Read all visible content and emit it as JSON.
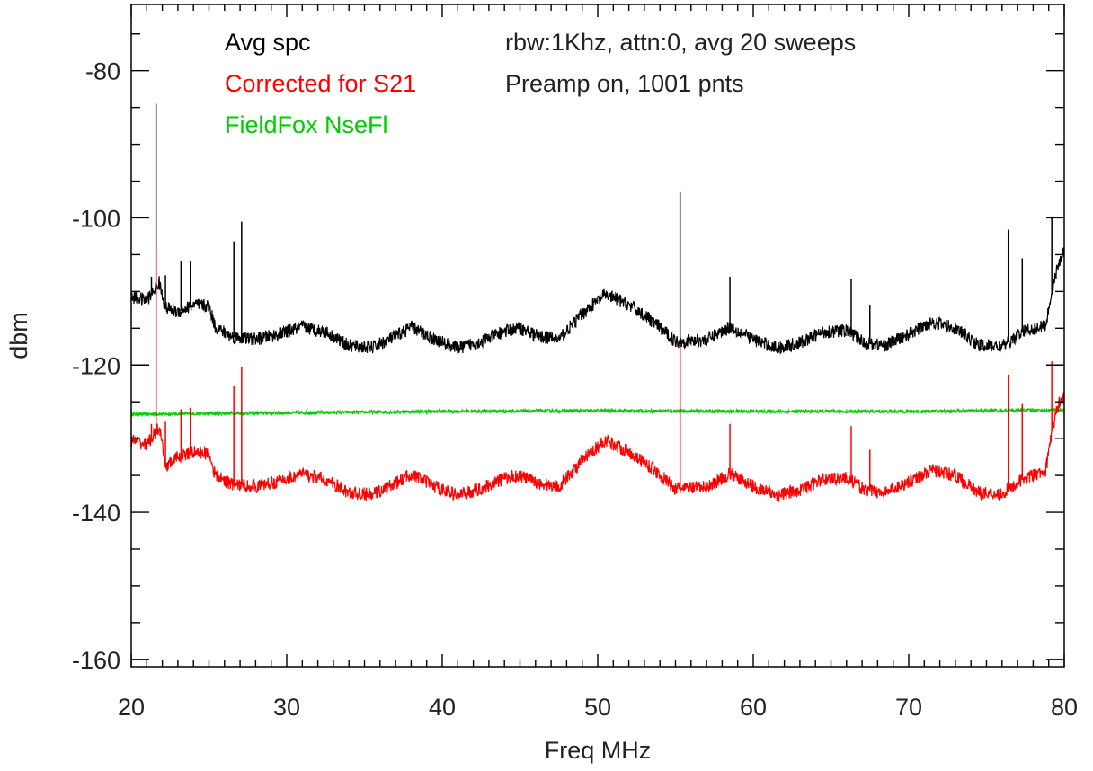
{
  "chart_data": {
    "type": "line",
    "xlabel": "Freq MHz",
    "ylabel": "dbm",
    "xlim": [
      20,
      80
    ],
    "ylim": [
      -161,
      -71
    ],
    "x_ticks": [
      20,
      30,
      40,
      50,
      60,
      70,
      80
    ],
    "y_ticks": [
      -160,
      -140,
      -120,
      -100,
      -80
    ],
    "x_minor_step": 1,
    "y_minor_step": 5,
    "grid": false,
    "legend_position": "top-left",
    "annotations": [
      {
        "id": "settings-line-1",
        "text": "rbw:1Khz, attn:0, avg 20 sweeps"
      },
      {
        "id": "settings-line-2",
        "text": "Preamp  on, 1001 pnts"
      }
    ],
    "series": [
      {
        "name": "Avg spc",
        "color": "#000000",
        "noise": 0.9,
        "points": [
          [
            20,
            -110.7
          ],
          [
            21,
            -111.2
          ],
          [
            21.8,
            -108.8
          ],
          [
            22.2,
            -112.2
          ],
          [
            23,
            -112.8
          ],
          [
            24,
            -111.8
          ],
          [
            25,
            -112
          ],
          [
            25.4,
            -114.8
          ],
          [
            26.5,
            -116.2
          ],
          [
            28,
            -116.5
          ],
          [
            29.5,
            -115.8
          ],
          [
            31,
            -114.8
          ],
          [
            32.5,
            -115.5
          ],
          [
            34,
            -117.4
          ],
          [
            35.5,
            -117.6
          ],
          [
            37,
            -116.1
          ],
          [
            38,
            -114.8
          ],
          [
            39.5,
            -116.5
          ],
          [
            41,
            -117.7
          ],
          [
            42.5,
            -116.8
          ],
          [
            44,
            -115.4
          ],
          [
            45,
            -115
          ],
          [
            46.2,
            -116.1
          ],
          [
            47.5,
            -116.5
          ],
          [
            49,
            -113
          ],
          [
            50.5,
            -110.4
          ],
          [
            52,
            -111.8
          ],
          [
            53.5,
            -114
          ],
          [
            55,
            -116.8
          ],
          [
            57,
            -116.6
          ],
          [
            58.5,
            -114.8
          ],
          [
            60,
            -116.5
          ],
          [
            61.5,
            -117.7
          ],
          [
            63,
            -117
          ],
          [
            64.5,
            -115.5
          ],
          [
            66,
            -115.3
          ],
          [
            67.2,
            -117
          ],
          [
            68.5,
            -117.3
          ],
          [
            70,
            -115.8
          ],
          [
            71.5,
            -114.1
          ],
          [
            73,
            -115
          ],
          [
            74.5,
            -117.3
          ],
          [
            76,
            -117.5
          ],
          [
            77.5,
            -115.3
          ],
          [
            78.8,
            -114.7
          ],
          [
            79.2,
            -110
          ],
          [
            79.7,
            -105.7
          ],
          [
            80,
            -104.7
          ]
        ],
        "spikes": [
          [
            21.3,
            -108
          ],
          [
            21.6,
            -84.5
          ],
          [
            22.2,
            -107.8
          ],
          [
            23.2,
            -105.8
          ],
          [
            23.8,
            -105.8
          ],
          [
            26.6,
            -103.2
          ],
          [
            27.1,
            -100.5
          ],
          [
            55.3,
            -96.5
          ],
          [
            58.5,
            -108
          ],
          [
            66.3,
            -108.3
          ],
          [
            67.5,
            -111.8
          ],
          [
            76.4,
            -101.6
          ],
          [
            77.3,
            -105.5
          ],
          [
            79.2,
            -99.8
          ]
        ]
      },
      {
        "name": "Corrected for S21",
        "color": "#ff0000",
        "noise": 0.9,
        "points": [
          [
            20,
            -130.2
          ],
          [
            21,
            -130.8
          ],
          [
            21.8,
            -128.5
          ],
          [
            22.2,
            -133.8
          ],
          [
            23,
            -132.5
          ],
          [
            24,
            -131.8
          ],
          [
            25,
            -132
          ],
          [
            25.4,
            -135
          ],
          [
            26.5,
            -136.2
          ],
          [
            28,
            -136.5
          ],
          [
            29.5,
            -135.8
          ],
          [
            31,
            -134.8
          ],
          [
            32.5,
            -135.6
          ],
          [
            34,
            -137.4
          ],
          [
            35.5,
            -137.6
          ],
          [
            37,
            -136.1
          ],
          [
            38,
            -134.8
          ],
          [
            39.5,
            -136.5
          ],
          [
            41,
            -137.7
          ],
          [
            42.5,
            -136.8
          ],
          [
            44,
            -135.4
          ],
          [
            45,
            -135
          ],
          [
            46.2,
            -136.1
          ],
          [
            47.5,
            -136.5
          ],
          [
            49,
            -133
          ],
          [
            50.5,
            -130.2
          ],
          [
            52,
            -131.8
          ],
          [
            53.5,
            -134
          ],
          [
            55,
            -136.8
          ],
          [
            57,
            -136.6
          ],
          [
            58.5,
            -134.8
          ],
          [
            60,
            -136.5
          ],
          [
            61.5,
            -137.7
          ],
          [
            63,
            -137
          ],
          [
            64.5,
            -135.5
          ],
          [
            66,
            -135.3
          ],
          [
            67.2,
            -137
          ],
          [
            68.5,
            -137.3
          ],
          [
            70,
            -135.8
          ],
          [
            71.5,
            -134.3
          ],
          [
            73,
            -135
          ],
          [
            74.5,
            -137.3
          ],
          [
            76,
            -137.5
          ],
          [
            77.5,
            -135.3
          ],
          [
            78.8,
            -134.5
          ],
          [
            79.2,
            -129
          ],
          [
            79.7,
            -124.8
          ],
          [
            80,
            -124.5
          ]
        ],
        "spikes": [
          [
            21.3,
            -128
          ],
          [
            21.6,
            -104.3
          ],
          [
            22.2,
            -127.7
          ],
          [
            23.2,
            -126
          ],
          [
            23.8,
            -125.8
          ],
          [
            26.6,
            -122.8
          ],
          [
            27.1,
            -120.2
          ],
          [
            55.3,
            -117.3
          ],
          [
            58.5,
            -128
          ],
          [
            66.3,
            -128.3
          ],
          [
            67.5,
            -131.5
          ],
          [
            76.4,
            -121.3
          ],
          [
            77.3,
            -125.3
          ],
          [
            79.2,
            -119.5
          ]
        ]
      },
      {
        "name": "FieldFox NseFl",
        "color": "#00cc00",
        "noise": 0.22,
        "points": [
          [
            20,
            -126.7
          ],
          [
            30,
            -126.5
          ],
          [
            40,
            -126.3
          ],
          [
            50,
            -126.2
          ],
          [
            60,
            -126.3
          ],
          [
            70,
            -126.3
          ],
          [
            80,
            -126.1
          ]
        ],
        "spikes": []
      }
    ]
  }
}
